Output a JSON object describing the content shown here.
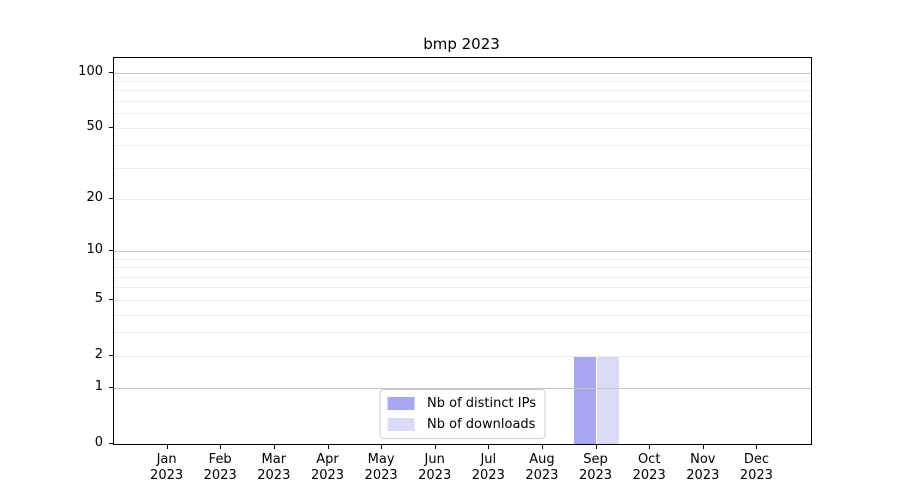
{
  "chart_data": {
    "type": "bar",
    "title": "bmp 2023",
    "categories": [
      "Jan 2023",
      "Feb 2023",
      "Mar 2023",
      "Apr 2023",
      "May 2023",
      "Jun 2023",
      "Jul 2023",
      "Aug 2023",
      "Sep 2023",
      "Oct 2023",
      "Nov 2023",
      "Dec 2023"
    ],
    "series": [
      {
        "name": "Nb of distinct IPs",
        "color": "#a7a7f2",
        "values": [
          0,
          0,
          0,
          0,
          0,
          0,
          0,
          0,
          2,
          0,
          0,
          0
        ]
      },
      {
        "name": "Nb of downloads",
        "color": "#dbdbf8",
        "values": [
          0,
          0,
          0,
          0,
          0,
          0,
          0,
          0,
          2,
          0,
          0,
          0
        ]
      }
    ],
    "xlabel": "",
    "ylabel": "",
    "y_ticks": [
      0,
      1,
      2,
      5,
      10,
      20,
      50,
      100
    ],
    "y_major_gridlines": [
      1,
      10,
      100
    ],
    "y_scale": "log1p",
    "ylim": [
      0,
      120
    ],
    "grid": "horizontal",
    "legend_position": "lower center",
    "colors": {
      "major_grid": "#c6c6c6",
      "minor_grid": "#ececec",
      "spine": "#000000",
      "background": "#ffffff"
    }
  }
}
